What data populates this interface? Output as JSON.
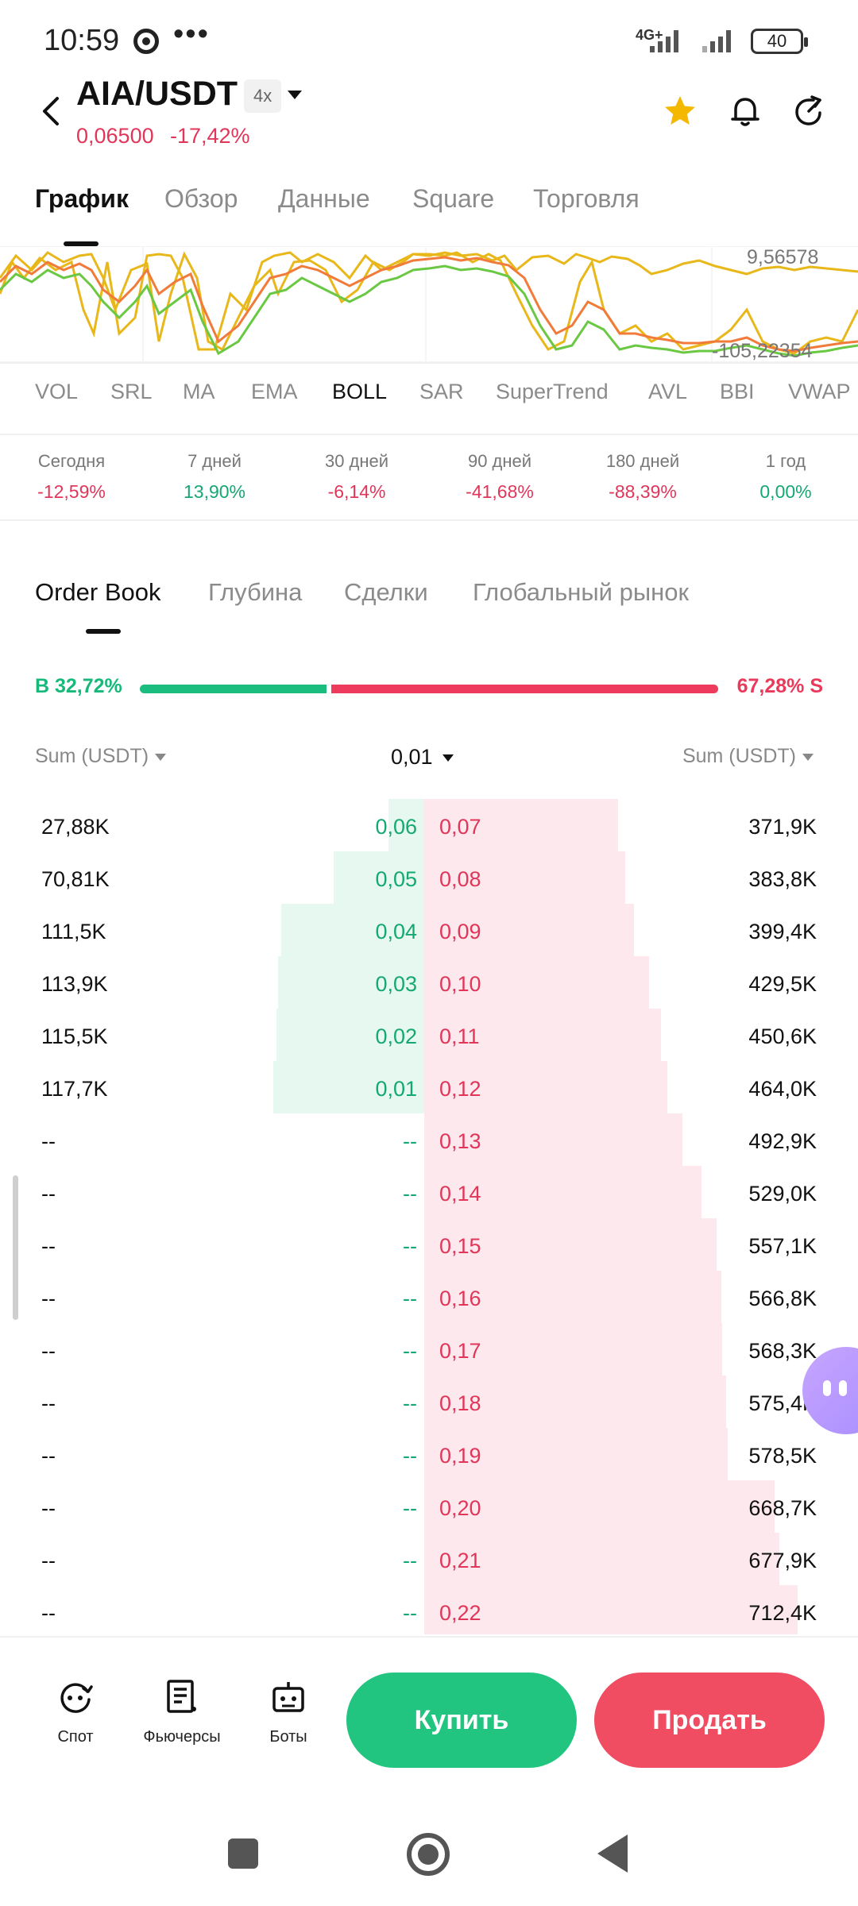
{
  "status_bar": {
    "time": "10:59",
    "dots": "•••",
    "network": "4G+",
    "battery": "40"
  },
  "header": {
    "pair": "AIA/USDT",
    "leverage": "4x",
    "last_price": "0,06500",
    "change": "-17,42%",
    "icons": [
      "back-icon",
      "star-icon",
      "bell-icon",
      "share-icon"
    ],
    "star_color": "#f5b800"
  },
  "main_tabs": [
    {
      "label": "График",
      "active": true
    },
    {
      "label": "Обзор",
      "active": false
    },
    {
      "label": "Данные",
      "active": false
    },
    {
      "label": "Square",
      "active": false
    },
    {
      "label": "Торговля",
      "active": false
    }
  ],
  "chart": {
    "max_label": "9,56578",
    "min_label": "-105,22354"
  },
  "indicators": [
    "VOL",
    "SRL",
    "MA",
    "EMA",
    "BOLL",
    "SAR",
    "SuperTrend",
    "AVL",
    "BBI",
    "VWAP"
  ],
  "indicators_active": "BOLL",
  "performance": [
    {
      "label": "Сегодня",
      "value": "-12,59%",
      "dir": "down"
    },
    {
      "label": "7 дней",
      "value": "13,90%",
      "dir": "up"
    },
    {
      "label": "30 дней",
      "value": "-6,14%",
      "dir": "down"
    },
    {
      "label": "90 дней",
      "value": "-41,68%",
      "dir": "down"
    },
    {
      "label": "180 дней",
      "value": "-88,39%",
      "dir": "down"
    },
    {
      "label": "1 год",
      "value": "0,00%",
      "dir": "up"
    }
  ],
  "orderbook_tabs": [
    {
      "label": "Order Book",
      "active": true
    },
    {
      "label": "Глубина",
      "active": false
    },
    {
      "label": "Сделки",
      "active": false
    },
    {
      "label": "Глобальный рынок",
      "active": false
    }
  ],
  "ratio": {
    "buy_label": "B 32,72%",
    "sell_label": "67,28% S",
    "buy_fraction": 0.3272
  },
  "columns": {
    "left": "Sum (USDT)",
    "middle": "0,01",
    "right": "Sum (USDT)"
  },
  "rows": [
    {
      "bid_sum": "27,88K",
      "bid_price": "0,06",
      "ask_price": "0,07",
      "ask_sum": "371,9K",
      "bid_depth": 0.237,
      "ask_depth": 0.52
    },
    {
      "bid_sum": "70,81K",
      "bid_price": "0,05",
      "ask_price": "0,08",
      "ask_sum": "383,8K",
      "bid_depth": 0.602,
      "ask_depth": 0.539
    },
    {
      "bid_sum": "111,5K",
      "bid_price": "0,04",
      "ask_price": "0,09",
      "ask_sum": "399,4K",
      "bid_depth": 0.947,
      "ask_depth": 0.561
    },
    {
      "bid_sum": "113,9K",
      "bid_price": "0,03",
      "ask_price": "0,10",
      "ask_sum": "429,5K",
      "bid_depth": 0.968,
      "ask_depth": 0.603
    },
    {
      "bid_sum": "115,5K",
      "bid_price": "0,02",
      "ask_price": "0,11",
      "ask_sum": "450,6K",
      "bid_depth": 0.981,
      "ask_depth": 0.633
    },
    {
      "bid_sum": "117,7K",
      "bid_price": "0,01",
      "ask_price": "0,12",
      "ask_sum": "464,0K",
      "bid_depth": 1.0,
      "ask_depth": 0.651
    },
    {
      "bid_sum": "--",
      "bid_price": "--",
      "ask_price": "0,13",
      "ask_sum": "492,9K",
      "bid_depth": 0,
      "ask_depth": 0.692
    },
    {
      "bid_sum": "--",
      "bid_price": "--",
      "ask_price": "0,14",
      "ask_sum": "529,0K",
      "bid_depth": 0,
      "ask_depth": 0.743
    },
    {
      "bid_sum": "--",
      "bid_price": "--",
      "ask_price": "0,15",
      "ask_sum": "557,1K",
      "bid_depth": 0,
      "ask_depth": 0.782
    },
    {
      "bid_sum": "--",
      "bid_price": "--",
      "ask_price": "0,16",
      "ask_sum": "566,8K",
      "bid_depth": 0,
      "ask_depth": 0.796
    },
    {
      "bid_sum": "--",
      "bid_price": "--",
      "ask_price": "0,17",
      "ask_sum": "568,3K",
      "bid_depth": 0,
      "ask_depth": 0.798
    },
    {
      "bid_sum": "--",
      "bid_price": "--",
      "ask_price": "0,18",
      "ask_sum": "575,4K",
      "bid_depth": 0,
      "ask_depth": 0.808
    },
    {
      "bid_sum": "--",
      "bid_price": "--",
      "ask_price": "0,19",
      "ask_sum": "578,5K",
      "bid_depth": 0,
      "ask_depth": 0.812
    },
    {
      "bid_sum": "--",
      "bid_price": "--",
      "ask_price": "0,20",
      "ask_sum": "668,7K",
      "bid_depth": 0,
      "ask_depth": 0.939
    },
    {
      "bid_sum": "--",
      "bid_price": "--",
      "ask_price": "0,21",
      "ask_sum": "677,9K",
      "bid_depth": 0,
      "ask_depth": 0.952
    },
    {
      "bid_sum": "--",
      "bid_price": "--",
      "ask_price": "0,22",
      "ask_sum": "712,4K",
      "bid_depth": 0,
      "ask_depth": 1.0
    }
  ],
  "bottom_nav": [
    {
      "label": "Спот",
      "icon": "spot-icon"
    },
    {
      "label": "Фьючерсы",
      "icon": "futures-icon"
    },
    {
      "label": "Боты",
      "icon": "bots-icon"
    }
  ],
  "actions": {
    "buy": "Купить",
    "sell": "Продать"
  },
  "colors": {
    "up": "#16a873",
    "down": "#e0365a",
    "buy_button": "#22c57f",
    "sell_button": "#f04d62"
  }
}
